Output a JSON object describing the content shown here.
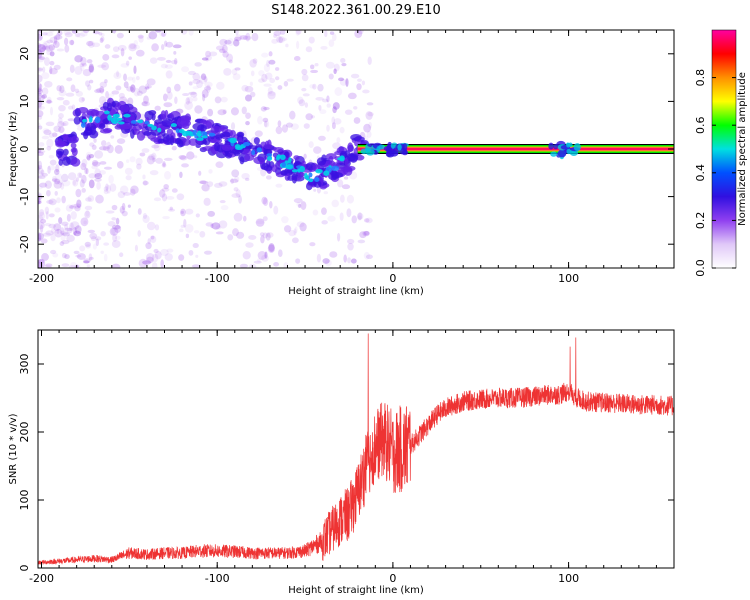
{
  "title": "S148.2022.361.00.29.E10",
  "chart_data": [
    {
      "type": "heatmap",
      "xlabel": "Height of straight line (km)",
      "ylabel": "Frequency (Hz)",
      "xlim": [
        -202,
        160
      ],
      "ylim": [
        -25,
        25
      ],
      "x_ticks": [
        -200,
        -100,
        0,
        100
      ],
      "y_ticks": [
        -20,
        -10,
        0,
        10,
        20
      ],
      "colorbar": {
        "label": "Normalized spectral amplitude",
        "range": [
          0,
          1
        ],
        "ticks": [
          0.0,
          0.2,
          0.4,
          0.6,
          0.8
        ],
        "colors": [
          "#ffffff",
          "#e0c8f8",
          "#9040f0",
          "#3010e0",
          "#0050ff",
          "#00e0e0",
          "#00ff00",
          "#ffff00",
          "#ff9000",
          "#ff0000",
          "#ff00a0"
        ]
      },
      "ridge": [
        {
          "x": -180,
          "y": 5
        },
        {
          "x": -160,
          "y": 7
        },
        {
          "x": -140,
          "y": 5
        },
        {
          "x": -120,
          "y": 4
        },
        {
          "x": -100,
          "y": 2
        },
        {
          "x": -80,
          "y": 0
        },
        {
          "x": -60,
          "y": -3
        },
        {
          "x": -45,
          "y": -6
        },
        {
          "x": -30,
          "y": -3
        },
        {
          "x": -20,
          "y": 0
        },
        {
          "x": 0,
          "y": 0.5
        },
        {
          "x": 20,
          "y": 0
        },
        {
          "x": 100,
          "y": 0
        },
        {
          "x": 160,
          "y": 0
        }
      ],
      "band": {
        "x_start": -20,
        "x_end": 160,
        "y": 0
      }
    },
    {
      "type": "line",
      "xlabel": "Height of straight line (km)",
      "ylabel": "SNR (10 * v/v)",
      "xlim": [
        -202,
        160
      ],
      "ylim": [
        0,
        350
      ],
      "x_ticks": [
        -200,
        -100,
        0,
        100
      ],
      "y_ticks": [
        0,
        100,
        200,
        300
      ],
      "series": [
        {
          "color": "#ee3333",
          "x": [
            -202,
            -190,
            -180,
            -170,
            -160,
            -150,
            -140,
            -130,
            -120,
            -110,
            -100,
            -90,
            -80,
            -70,
            -60,
            -50,
            -40,
            -35,
            -30,
            -25,
            -20,
            -15,
            -10,
            -5,
            0,
            5,
            10,
            15,
            20,
            25,
            30,
            40,
            50,
            60,
            70,
            80,
            90,
            95,
            100,
            105,
            110,
            120,
            130,
            140,
            150,
            160
          ],
          "y": [
            8,
            10,
            12,
            14,
            12,
            22,
            20,
            22,
            22,
            25,
            25,
            24,
            22,
            22,
            22,
            25,
            40,
            55,
            70,
            80,
            110,
            150,
            180,
            190,
            170,
            175,
            180,
            195,
            210,
            225,
            235,
            245,
            248,
            250,
            250,
            252,
            255,
            255,
            260,
            250,
            245,
            243,
            242,
            240,
            240,
            238
          ]
        }
      ]
    }
  ]
}
